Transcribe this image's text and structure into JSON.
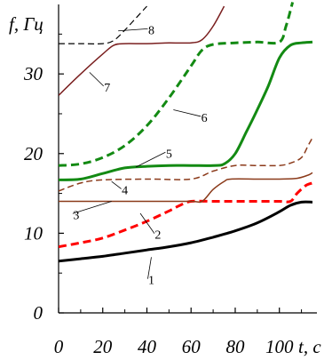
{
  "chart_data": {
    "type": "line",
    "title": "",
    "xlabel": "t, c",
    "ylabel": "f, Гц",
    "xlim": [
      0,
      117
    ],
    "ylim": [
      0,
      38.5
    ],
    "x_ticks": [
      0,
      20,
      40,
      60,
      80,
      100
    ],
    "y_ticks": [
      0,
      10,
      20,
      30
    ],
    "grid": false,
    "series": [
      {
        "name": "1",
        "color": "#000000",
        "style": "solid",
        "width": 3,
        "points": [
          [
            0,
            6.5
          ],
          [
            10,
            6.8
          ],
          [
            20,
            7.1
          ],
          [
            30,
            7.5
          ],
          [
            40,
            7.9
          ],
          [
            50,
            8.3
          ],
          [
            60,
            8.8
          ],
          [
            70,
            9.5
          ],
          [
            80,
            10.3
          ],
          [
            90,
            11.3
          ],
          [
            100,
            12.7
          ],
          [
            105,
            13.5
          ],
          [
            110,
            13.9
          ],
          [
            115,
            13.9
          ]
        ],
        "label_at": [
          42,
          7.0
        ]
      },
      {
        "name": "2",
        "color": "#ff0000",
        "style": "dashed",
        "width": 3,
        "points": [
          [
            0,
            8.3
          ],
          [
            10,
            8.8
          ],
          [
            20,
            9.4
          ],
          [
            30,
            10.4
          ],
          [
            40,
            11.5
          ],
          [
            50,
            12.8
          ],
          [
            55,
            13.5
          ],
          [
            60,
            14
          ],
          [
            70,
            14
          ],
          [
            80,
            14
          ],
          [
            90,
            14
          ],
          [
            100,
            14
          ],
          [
            105,
            14
          ],
          [
            108,
            15
          ],
          [
            112,
            16
          ],
          [
            115,
            16.3
          ]
        ],
        "label_at": [
          37,
          12.5
        ]
      },
      {
        "name": "3",
        "color": "#8b3a1a",
        "style": "solid",
        "width": 1.5,
        "points": [
          [
            0,
            14
          ],
          [
            20,
            14
          ],
          [
            40,
            14
          ],
          [
            60,
            14
          ],
          [
            65,
            14
          ],
          [
            70,
            15.5
          ],
          [
            75,
            16.5
          ],
          [
            78,
            16.8
          ],
          [
            90,
            16.8
          ],
          [
            100,
            16.8
          ],
          [
            108,
            16.9
          ],
          [
            113,
            17.3
          ],
          [
            115,
            17.6
          ]
        ],
        "label_at": [
          24,
          14.0
        ]
      },
      {
        "name": "4",
        "color": "#8b3a1a",
        "style": "dashed",
        "width": 1.5,
        "points": [
          [
            0,
            15.3
          ],
          [
            10,
            16.3
          ],
          [
            20,
            16.7
          ],
          [
            40,
            16.8
          ],
          [
            60,
            16.8
          ],
          [
            70,
            17.8
          ],
          [
            80,
            18.5
          ],
          [
            90,
            18.5
          ],
          [
            100,
            18.5
          ],
          [
            105,
            18.8
          ],
          [
            110,
            19.5
          ],
          [
            113,
            21
          ],
          [
            115,
            22
          ]
        ],
        "label_at": [
          24,
          16.5
        ]
      },
      {
        "name": "5",
        "color": "#138a13",
        "style": "solid",
        "width": 3,
        "points": [
          [
            0,
            16.7
          ],
          [
            10,
            16.8
          ],
          [
            20,
            17.5
          ],
          [
            30,
            18.2
          ],
          [
            40,
            18.4
          ],
          [
            50,
            18.5
          ],
          [
            60,
            18.5
          ],
          [
            70,
            18.5
          ],
          [
            75,
            18.7
          ],
          [
            80,
            20
          ],
          [
            85,
            22.7
          ],
          [
            90,
            25.5
          ],
          [
            95,
            28.5
          ],
          [
            100,
            32
          ],
          [
            105,
            33.6
          ],
          [
            110,
            33.9
          ],
          [
            115,
            34
          ]
        ],
        "label_at": [
          35,
          18.3
        ]
      },
      {
        "name": "6",
        "color": "#138a13",
        "style": "dashed",
        "width": 3,
        "points": [
          [
            0,
            18.5
          ],
          [
            10,
            18.7
          ],
          [
            20,
            19.5
          ],
          [
            30,
            21
          ],
          [
            40,
            23.5
          ],
          [
            50,
            27
          ],
          [
            60,
            31
          ],
          [
            65,
            33
          ],
          [
            70,
            33.7
          ],
          [
            80,
            33.9
          ],
          [
            90,
            34
          ],
          [
            100,
            34
          ],
          [
            103,
            36
          ],
          [
            106,
            39
          ]
        ],
        "label_at": [
          52,
          25.5
        ]
      },
      {
        "name": "7",
        "color": "#7a1f1f",
        "style": "solid",
        "width": 1.5,
        "points": [
          [
            0,
            27.3
          ],
          [
            10,
            30
          ],
          [
            20,
            32.5
          ],
          [
            25,
            33.6
          ],
          [
            30,
            33.8
          ],
          [
            40,
            33.8
          ],
          [
            50,
            33.9
          ],
          [
            60,
            33.9
          ],
          [
            65,
            34.3
          ],
          [
            70,
            36
          ],
          [
            75,
            38.5
          ]
        ],
        "label_at": [
          14,
          30.2
        ]
      },
      {
        "name": "8",
        "color": "#000000",
        "style": "dashed",
        "width": 1.2,
        "points": [
          [
            0,
            33.8
          ],
          [
            10,
            33.8
          ],
          [
            20,
            33.8
          ],
          [
            25,
            34.2
          ],
          [
            30,
            35.5
          ],
          [
            35,
            37
          ],
          [
            40,
            38.5
          ]
        ],
        "label_at": [
          27,
          35.4
        ]
      }
    ],
    "number_labels": [
      {
        "text": "1",
        "x": 42,
        "y": 3.6
      },
      {
        "text": "2",
        "x": 45,
        "y": 9.3
      },
      {
        "text": "3",
        "x": 8,
        "y": 11.8
      },
      {
        "text": "4",
        "x": 30,
        "y": 14.9
      },
      {
        "text": "5",
        "x": 50,
        "y": 19.5
      },
      {
        "text": "6",
        "x": 66,
        "y": 24.0
      },
      {
        "text": "7",
        "x": 22,
        "y": 27.8
      },
      {
        "text": "8",
        "x": 42,
        "y": 35.0
      }
    ]
  }
}
